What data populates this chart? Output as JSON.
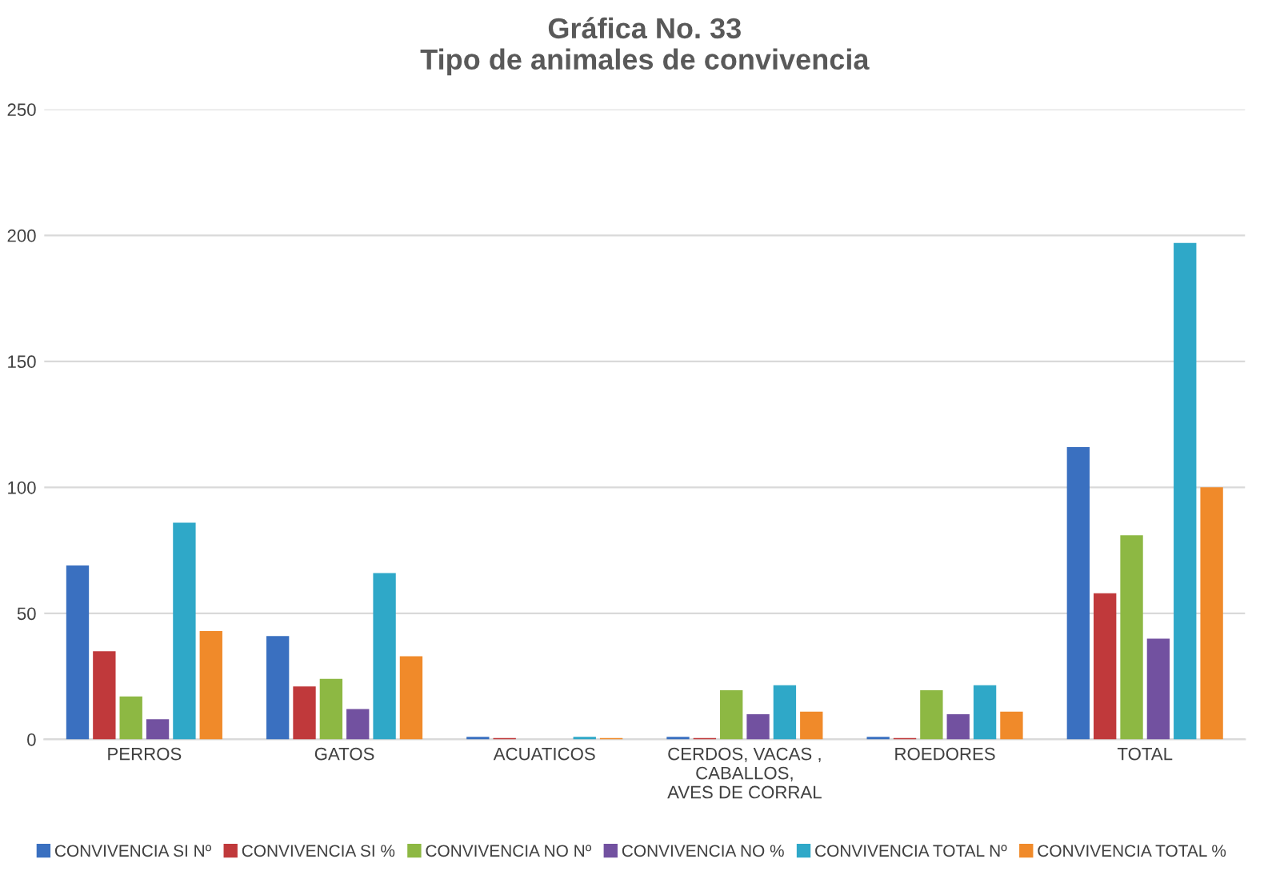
{
  "chart_data": {
    "type": "bar",
    "title": "Gráfica No. 33\nTipo de animales de convivencia",
    "categories": [
      "PERROS",
      "GATOS",
      "ACUATICOS",
      "CERDOS, VACAS ,\nCABALLOS,\nAVES DE CORRAL",
      "ROEDORES",
      "TOTAL"
    ],
    "series": [
      {
        "name": "CONVIVENCIA SI Nº",
        "color": "#3a70c0",
        "values": [
          69,
          41,
          1,
          1,
          1,
          116
        ]
      },
      {
        "name": "CONVIVENCIA SI %",
        "color": "#c0393b",
        "values": [
          35,
          21,
          0.5,
          0.5,
          0.5,
          58
        ]
      },
      {
        "name": "CONVIVENCIA NO Nº",
        "color": "#8db843",
        "values": [
          17,
          24,
          0,
          19.5,
          19.5,
          81
        ]
      },
      {
        "name": "CONVIVENCIA NO %",
        "color": "#7251a0",
        "values": [
          8,
          12,
          0,
          10,
          10,
          40
        ]
      },
      {
        "name": "CONVIVENCIA TOTAL Nº",
        "color": "#2fa8c8",
        "values": [
          86,
          66,
          1,
          21.5,
          21.5,
          197
        ]
      },
      {
        "name": "CONVIVENCIA TOTAL %",
        "color": "#f08a2a",
        "values": [
          43,
          33,
          0.5,
          11,
          11,
          100
        ]
      }
    ],
    "ylim": [
      0,
      250
    ],
    "yticks": [
      0,
      50,
      100,
      150,
      200,
      250
    ],
    "grid": "y",
    "legend": "bottom"
  }
}
